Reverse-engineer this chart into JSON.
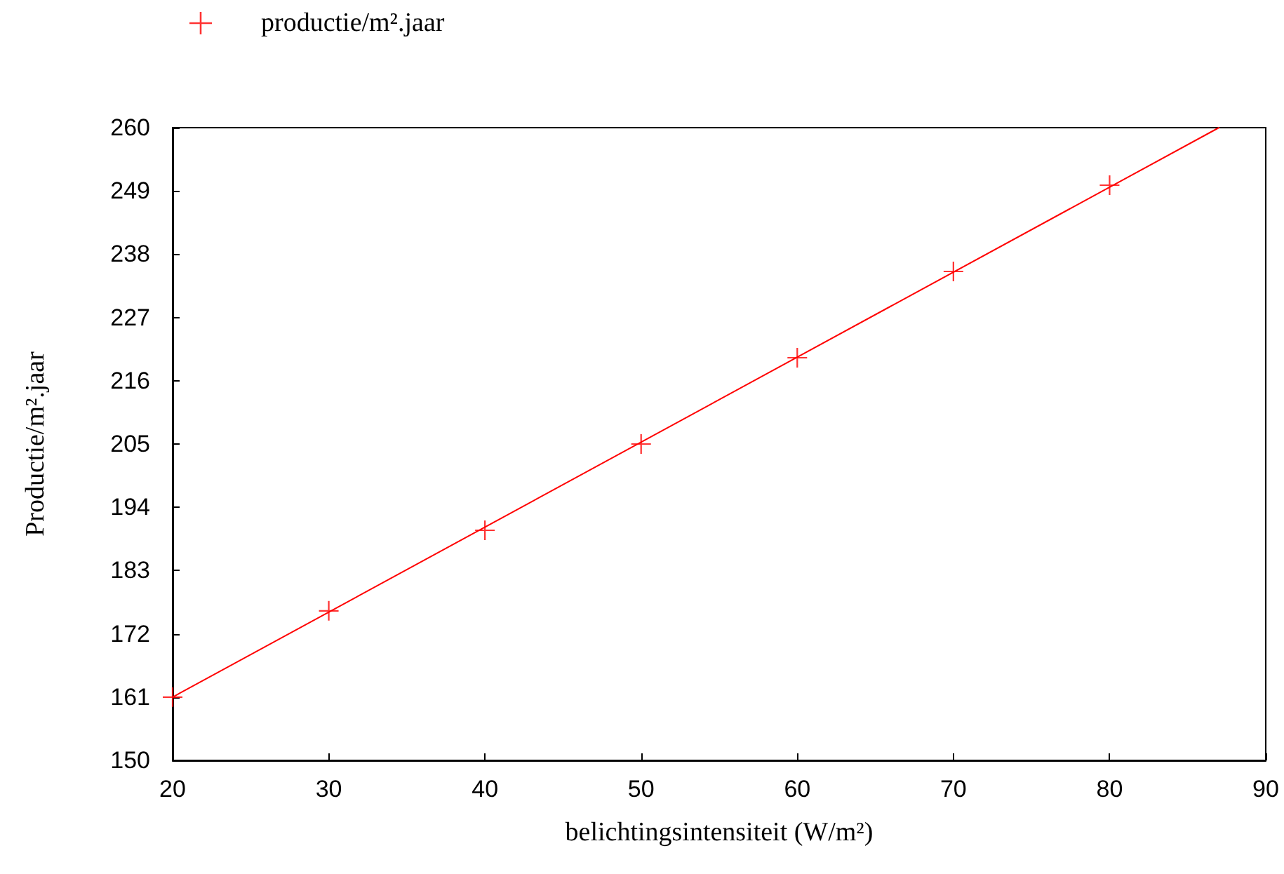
{
  "chart_data": {
    "type": "scatter",
    "xlabel": "belichtingsintensiteit (W/m²)",
    "ylabel": "Productie/m².jaar",
    "xlim": [
      20,
      90
    ],
    "xticks": [
      20,
      30,
      40,
      50,
      60,
      70,
      80,
      90
    ],
    "ylim": [
      150,
      260
    ],
    "yticks": [
      150,
      161,
      172,
      183,
      194,
      205,
      216,
      227,
      238,
      249,
      260
    ],
    "grid": false,
    "legend": "top left",
    "series": [
      {
        "name": "productie/m².jaar",
        "color": "#ff0000",
        "marker": "cross",
        "x": [
          20,
          30,
          40,
          50,
          60,
          70,
          80
        ],
        "values": [
          161,
          176,
          190,
          205,
          220,
          235,
          250
        ]
      },
      {
        "type": "line",
        "color": "#ff0000",
        "marker": "none",
        "x": [
          20,
          87
        ],
        "values": [
          161,
          260
        ]
      }
    ]
  }
}
